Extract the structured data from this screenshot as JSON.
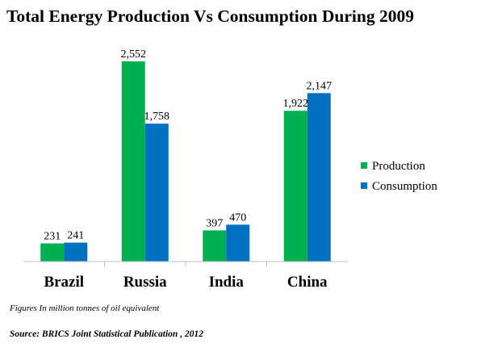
{
  "chart_data": {
    "type": "bar",
    "title": "Total Energy Production Vs Consumption During 2009",
    "categories": [
      "Brazil",
      "Russia",
      "India",
      "China"
    ],
    "series": [
      {
        "name": "Production",
        "values": [
          231,
          2552,
          397,
          1922
        ],
        "labels": [
          "231",
          "2,552",
          "397",
          "1,922"
        ],
        "color": "#00b050"
      },
      {
        "name": "Consumption",
        "values": [
          241,
          1758,
          470,
          2147
        ],
        "labels": [
          "241",
          "1,758",
          "470",
          "2,147"
        ],
        "color": "#0070c0"
      }
    ],
    "ylim": [
      0,
      2552
    ],
    "grid": false,
    "legend_position": "right"
  },
  "note": "Figures In million tonnes of oil equivalent",
  "source": "Source: BRICS Joint Statistical Publication , 2012"
}
